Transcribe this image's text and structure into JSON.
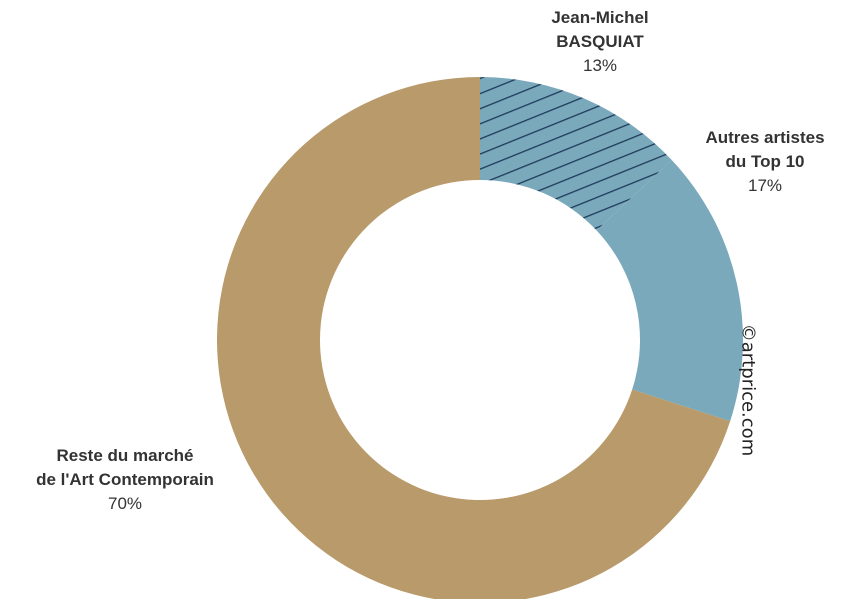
{
  "chart_data": {
    "type": "pie",
    "style": "donut",
    "slices": [
      {
        "label_line1": "Jean-Michel",
        "label_line2": "BASQUIAT",
        "value": 13,
        "value_label": "13%",
        "color": "#79a9bb",
        "hatch": true,
        "hatch_color": "#1f3a5c"
      },
      {
        "label_line1": "Autres artistes",
        "label_line2": "du Top 10",
        "value": 17,
        "value_label": "17%",
        "color": "#79a9bb",
        "hatch": false
      },
      {
        "label_line1": "Reste du marché",
        "label_line2": "de l'Art Contemporain",
        "value": 70,
        "value_label": "70%",
        "color": "#b89a6b",
        "hatch": false
      }
    ],
    "start_angle": "12 o'clock",
    "direction": "clockwise"
  },
  "watermark": "©artprice.com"
}
